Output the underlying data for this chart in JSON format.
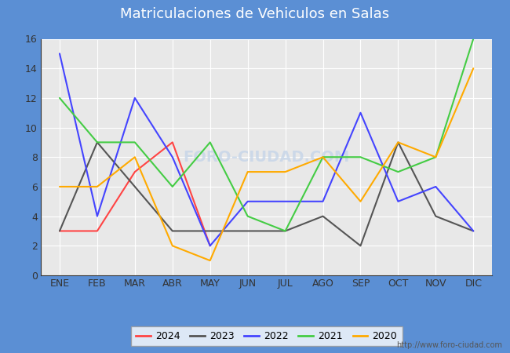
{
  "title": "Matriculaciones de Vehiculos en Salas",
  "months": [
    "ENE",
    "FEB",
    "MAR",
    "ABR",
    "MAY",
    "JUN",
    "JUL",
    "AGO",
    "SEP",
    "OCT",
    "NOV",
    "DIC"
  ],
  "series": {
    "2024": {
      "color": "#ff4444",
      "values": [
        3,
        3,
        7,
        9,
        2,
        null,
        null,
        null,
        null,
        null,
        null,
        null
      ]
    },
    "2023": {
      "color": "#555555",
      "values": [
        3,
        9,
        6,
        3,
        3,
        3,
        3,
        4,
        2,
        9,
        4,
        3
      ]
    },
    "2022": {
      "color": "#4444ff",
      "values": [
        15,
        4,
        12,
        8,
        2,
        5,
        5,
        5,
        11,
        5,
        6,
        3
      ]
    },
    "2021": {
      "color": "#44cc44",
      "values": [
        12,
        9,
        9,
        6,
        9,
        4,
        3,
        8,
        8,
        7,
        8,
        16
      ]
    },
    "2020": {
      "color": "#ffaa00",
      "values": [
        6,
        6,
        8,
        2,
        1,
        7,
        7,
        8,
        5,
        9,
        8,
        14
      ]
    }
  },
  "ylim": [
    0,
    16
  ],
  "yticks": [
    0,
    2,
    4,
    6,
    8,
    10,
    12,
    14,
    16
  ],
  "header_color": "#5b8fd4",
  "outer_bg": "#5b8fd4",
  "plot_bg": "#e8e8e8",
  "grid_color": "#ffffff",
  "watermark_text": "FORO-CIUDAD.COM",
  "watermark_color": "#c5d5e8",
  "url": "http://www.foro-ciudad.com",
  "legend_order": [
    "2024",
    "2023",
    "2022",
    "2021",
    "2020"
  ],
  "title_fontsize": 13,
  "tick_fontsize": 9,
  "legend_fontsize": 9,
  "line_width": 1.5
}
